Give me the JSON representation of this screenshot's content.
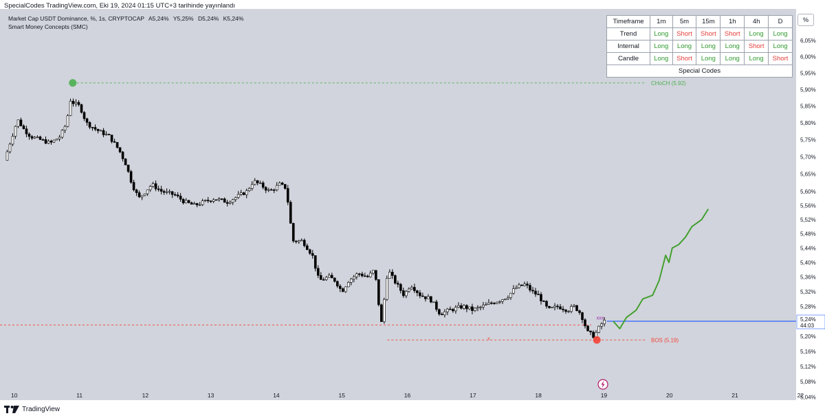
{
  "header": {
    "published": "SpecialCodes TradingView.com, Eki 19, 2024 01:15 UTC+3 tarihinde yayınlandı"
  },
  "symbol_line": {
    "name": "Market Cap USDT Dominance, %, 1s, CRYPTOCAP",
    "ohlc": [
      "A5,24%",
      "Y5,25%",
      "D5,24%",
      "K5,24%"
    ]
  },
  "indicator": "Smart Money Concepts (SMC)",
  "panel": {
    "headers": [
      "Timeframe",
      "1m",
      "5m",
      "15m",
      "1h",
      "4h",
      "D"
    ],
    "rows": [
      {
        "label": "Trend",
        "values": [
          "Long",
          "Short",
          "Short",
          "Short",
          "Long",
          "Long"
        ]
      },
      {
        "label": "Internal",
        "values": [
          "Long",
          "Long",
          "Long",
          "Long",
          "Short",
          "Long"
        ]
      },
      {
        "label": "Candle",
        "values": [
          "Long",
          "Short",
          "Long",
          "Long",
          "Long",
          "Short"
        ]
      }
    ],
    "footer": "Special Codes"
  },
  "scale_button": "%",
  "brand": "TradingView",
  "colors": {
    "background": "#d1d4dc",
    "candle_up": "#ffffff",
    "candle_down": "#000000",
    "choch": "#4caf50",
    "bos": "#f44336",
    "projection": "#43a02f",
    "price_line": "#2962ff"
  },
  "chart_data": {
    "type": "candlestick",
    "x_tick_labels": [
      "10",
      "11",
      "12",
      "13",
      "14",
      "15",
      "16",
      "17",
      "18",
      "19",
      "20",
      "21",
      "22"
    ],
    "y_tick_labels": [
      "6,05%",
      "6,00%",
      "5,95%",
      "5,90%",
      "5,85%",
      "5,80%",
      "5,75%",
      "5,70%",
      "5,65%",
      "5,60%",
      "5,56%",
      "5,52%",
      "5,48%",
      "5,44%",
      "5,40%",
      "5,36%",
      "5,32%",
      "5,28%",
      "5,24%",
      "5,20%",
      "5,16%",
      "5,12%",
      "5,08%",
      "5,04%"
    ],
    "ylim": [
      5.02,
      6.1
    ],
    "scale": "log",
    "price_label": "5,24%",
    "countdown": "44:03",
    "last_price": 5.24,
    "levels": [
      {
        "label": "CHoCH  (5.92)",
        "value": 5.92,
        "color": "#4caf50",
        "style": "dashed"
      },
      {
        "label": "BOS  (5.19)",
        "value": 5.19,
        "color": "#f44336",
        "style": "dashed"
      }
    ],
    "markers": [
      {
        "type": "choch-dot",
        "day": 10.9,
        "value": 5.92,
        "color": "#4caf50"
      },
      {
        "type": "bos-dot",
        "day": 18.9,
        "value": 5.19,
        "color": "#f44336"
      },
      {
        "type": "x-mark",
        "label": "x",
        "day": 17.25,
        "value": 5.195,
        "color": "#f44336"
      },
      {
        "type": "x-mark",
        "label": "xxx",
        "day": 18.95,
        "value": 5.25,
        "color": "#9c27b0"
      }
    ],
    "price_path": [
      [
        9.9,
        5.69
      ],
      [
        10.0,
        5.75
      ],
      [
        10.1,
        5.81
      ],
      [
        10.2,
        5.78
      ],
      [
        10.3,
        5.76
      ],
      [
        10.45,
        5.75
      ],
      [
        10.6,
        5.74
      ],
      [
        10.75,
        5.76
      ],
      [
        10.85,
        5.8
      ],
      [
        10.9,
        5.87
      ],
      [
        10.95,
        5.86
      ],
      [
        11.05,
        5.85
      ],
      [
        11.15,
        5.8
      ],
      [
        11.3,
        5.78
      ],
      [
        11.5,
        5.76
      ],
      [
        11.65,
        5.72
      ],
      [
        11.75,
        5.68
      ],
      [
        11.85,
        5.62
      ],
      [
        11.95,
        5.58
      ],
      [
        12.05,
        5.6
      ],
      [
        12.15,
        5.62
      ],
      [
        12.3,
        5.6
      ],
      [
        12.5,
        5.59
      ],
      [
        12.65,
        5.57
      ],
      [
        12.8,
        5.56
      ],
      [
        12.95,
        5.57
      ],
      [
        13.1,
        5.58
      ],
      [
        13.3,
        5.57
      ],
      [
        13.5,
        5.59
      ],
      [
        13.6,
        5.6
      ],
      [
        13.7,
        5.63
      ],
      [
        13.8,
        5.62
      ],
      [
        13.95,
        5.6
      ],
      [
        14.1,
        5.62
      ],
      [
        14.2,
        5.61
      ],
      [
        14.3,
        5.46
      ],
      [
        14.45,
        5.46
      ],
      [
        14.6,
        5.42
      ],
      [
        14.7,
        5.35
      ],
      [
        14.85,
        5.36
      ],
      [
        14.95,
        5.35
      ],
      [
        15.05,
        5.32
      ],
      [
        15.15,
        5.35
      ],
      [
        15.3,
        5.37
      ],
      [
        15.45,
        5.36
      ],
      [
        15.55,
        5.38
      ],
      [
        15.65,
        5.23
      ],
      [
        15.75,
        5.38
      ],
      [
        15.85,
        5.35
      ],
      [
        16.0,
        5.31
      ],
      [
        16.1,
        5.34
      ],
      [
        16.25,
        5.31
      ],
      [
        16.4,
        5.3
      ],
      [
        16.55,
        5.26
      ],
      [
        16.7,
        5.27
      ],
      [
        16.9,
        5.28
      ],
      [
        17.05,
        5.27
      ],
      [
        17.2,
        5.28
      ],
      [
        17.35,
        5.29
      ],
      [
        17.5,
        5.3
      ],
      [
        17.6,
        5.31
      ],
      [
        17.7,
        5.33
      ],
      [
        17.85,
        5.34
      ],
      [
        17.95,
        5.32
      ],
      [
        18.05,
        5.31
      ],
      [
        18.2,
        5.27
      ],
      [
        18.35,
        5.28
      ],
      [
        18.5,
        5.27
      ],
      [
        18.6,
        5.28
      ],
      [
        18.7,
        5.26
      ],
      [
        18.8,
        5.21
      ],
      [
        18.9,
        5.2
      ],
      [
        19.0,
        5.23
      ],
      [
        19.05,
        5.24
      ]
    ],
    "projection_path": [
      [
        19.15,
        5.24
      ],
      [
        19.25,
        5.22
      ],
      [
        19.35,
        5.25
      ],
      [
        19.5,
        5.27
      ],
      [
        19.6,
        5.3
      ],
      [
        19.75,
        5.31
      ],
      [
        19.85,
        5.35
      ],
      [
        19.95,
        5.42
      ],
      [
        20.0,
        5.4
      ],
      [
        20.05,
        5.44
      ],
      [
        20.15,
        5.45
      ],
      [
        20.25,
        5.47
      ],
      [
        20.35,
        5.5
      ],
      [
        20.5,
        5.52
      ],
      [
        20.6,
        5.55
      ]
    ]
  }
}
